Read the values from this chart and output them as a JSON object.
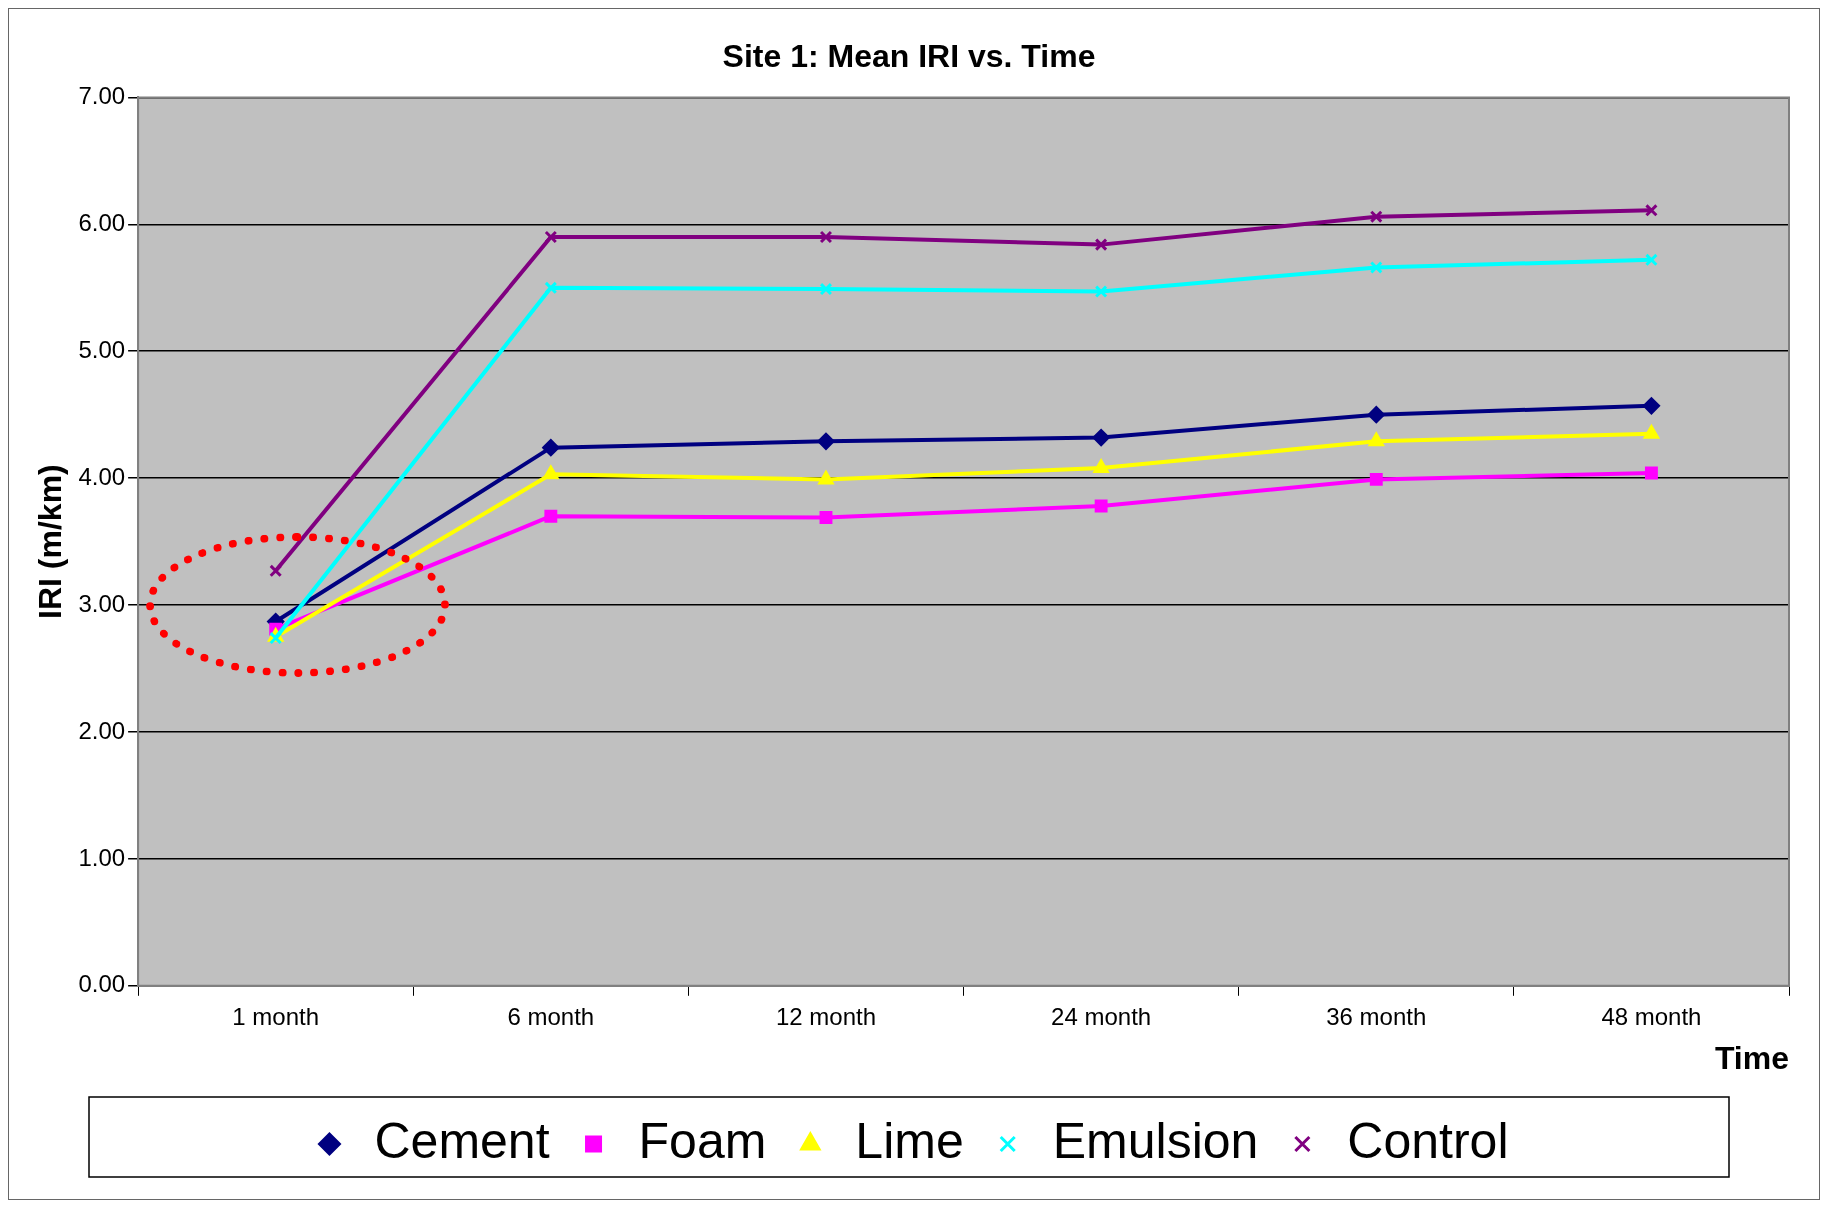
{
  "chart_data": {
    "type": "line",
    "title": "Site 1: Mean IRI vs. Time",
    "xlabel": "Time",
    "ylabel": "IRI (m/km)",
    "categories": [
      "1 month",
      "6 month",
      "12 month",
      "24 month",
      "36 month",
      "48 month"
    ],
    "series": [
      {
        "name": "Cement",
        "color": "#000080",
        "marker": "diamond",
        "values": [
          2.87,
          4.24,
          4.29,
          4.32,
          4.5,
          4.57
        ]
      },
      {
        "name": "Foam",
        "color": "#ff00ff",
        "marker": "square",
        "values": [
          2.81,
          3.7,
          3.69,
          3.78,
          3.99,
          4.04
        ]
      },
      {
        "name": "Lime",
        "color": "#ffff00",
        "marker": "triangle",
        "values": [
          2.75,
          4.03,
          3.99,
          4.08,
          4.29,
          4.35
        ]
      },
      {
        "name": "Emulsion",
        "color": "#00ffff",
        "marker": "cross",
        "values": [
          2.74,
          5.5,
          5.49,
          5.47,
          5.66,
          5.72
        ]
      },
      {
        "name": "Control",
        "color": "#800080",
        "marker": "cross",
        "values": [
          3.27,
          5.9,
          5.9,
          5.84,
          6.06,
          6.11
        ]
      }
    ],
    "ylim": [
      0,
      7
    ],
    "yticks": [
      {
        "value": 0,
        "label": "0.00"
      },
      {
        "value": 1,
        "label": "1.00"
      },
      {
        "value": 2,
        "label": "2.00"
      },
      {
        "value": 3,
        "label": "3.00"
      },
      {
        "value": 4,
        "label": "4.00"
      },
      {
        "value": 5,
        "label": "5.00"
      },
      {
        "value": 6,
        "label": "6.00"
      },
      {
        "value": 7,
        "label": "7.00"
      }
    ],
    "grid": "y",
    "legend": "bottom",
    "line_style": "solid"
  }
}
